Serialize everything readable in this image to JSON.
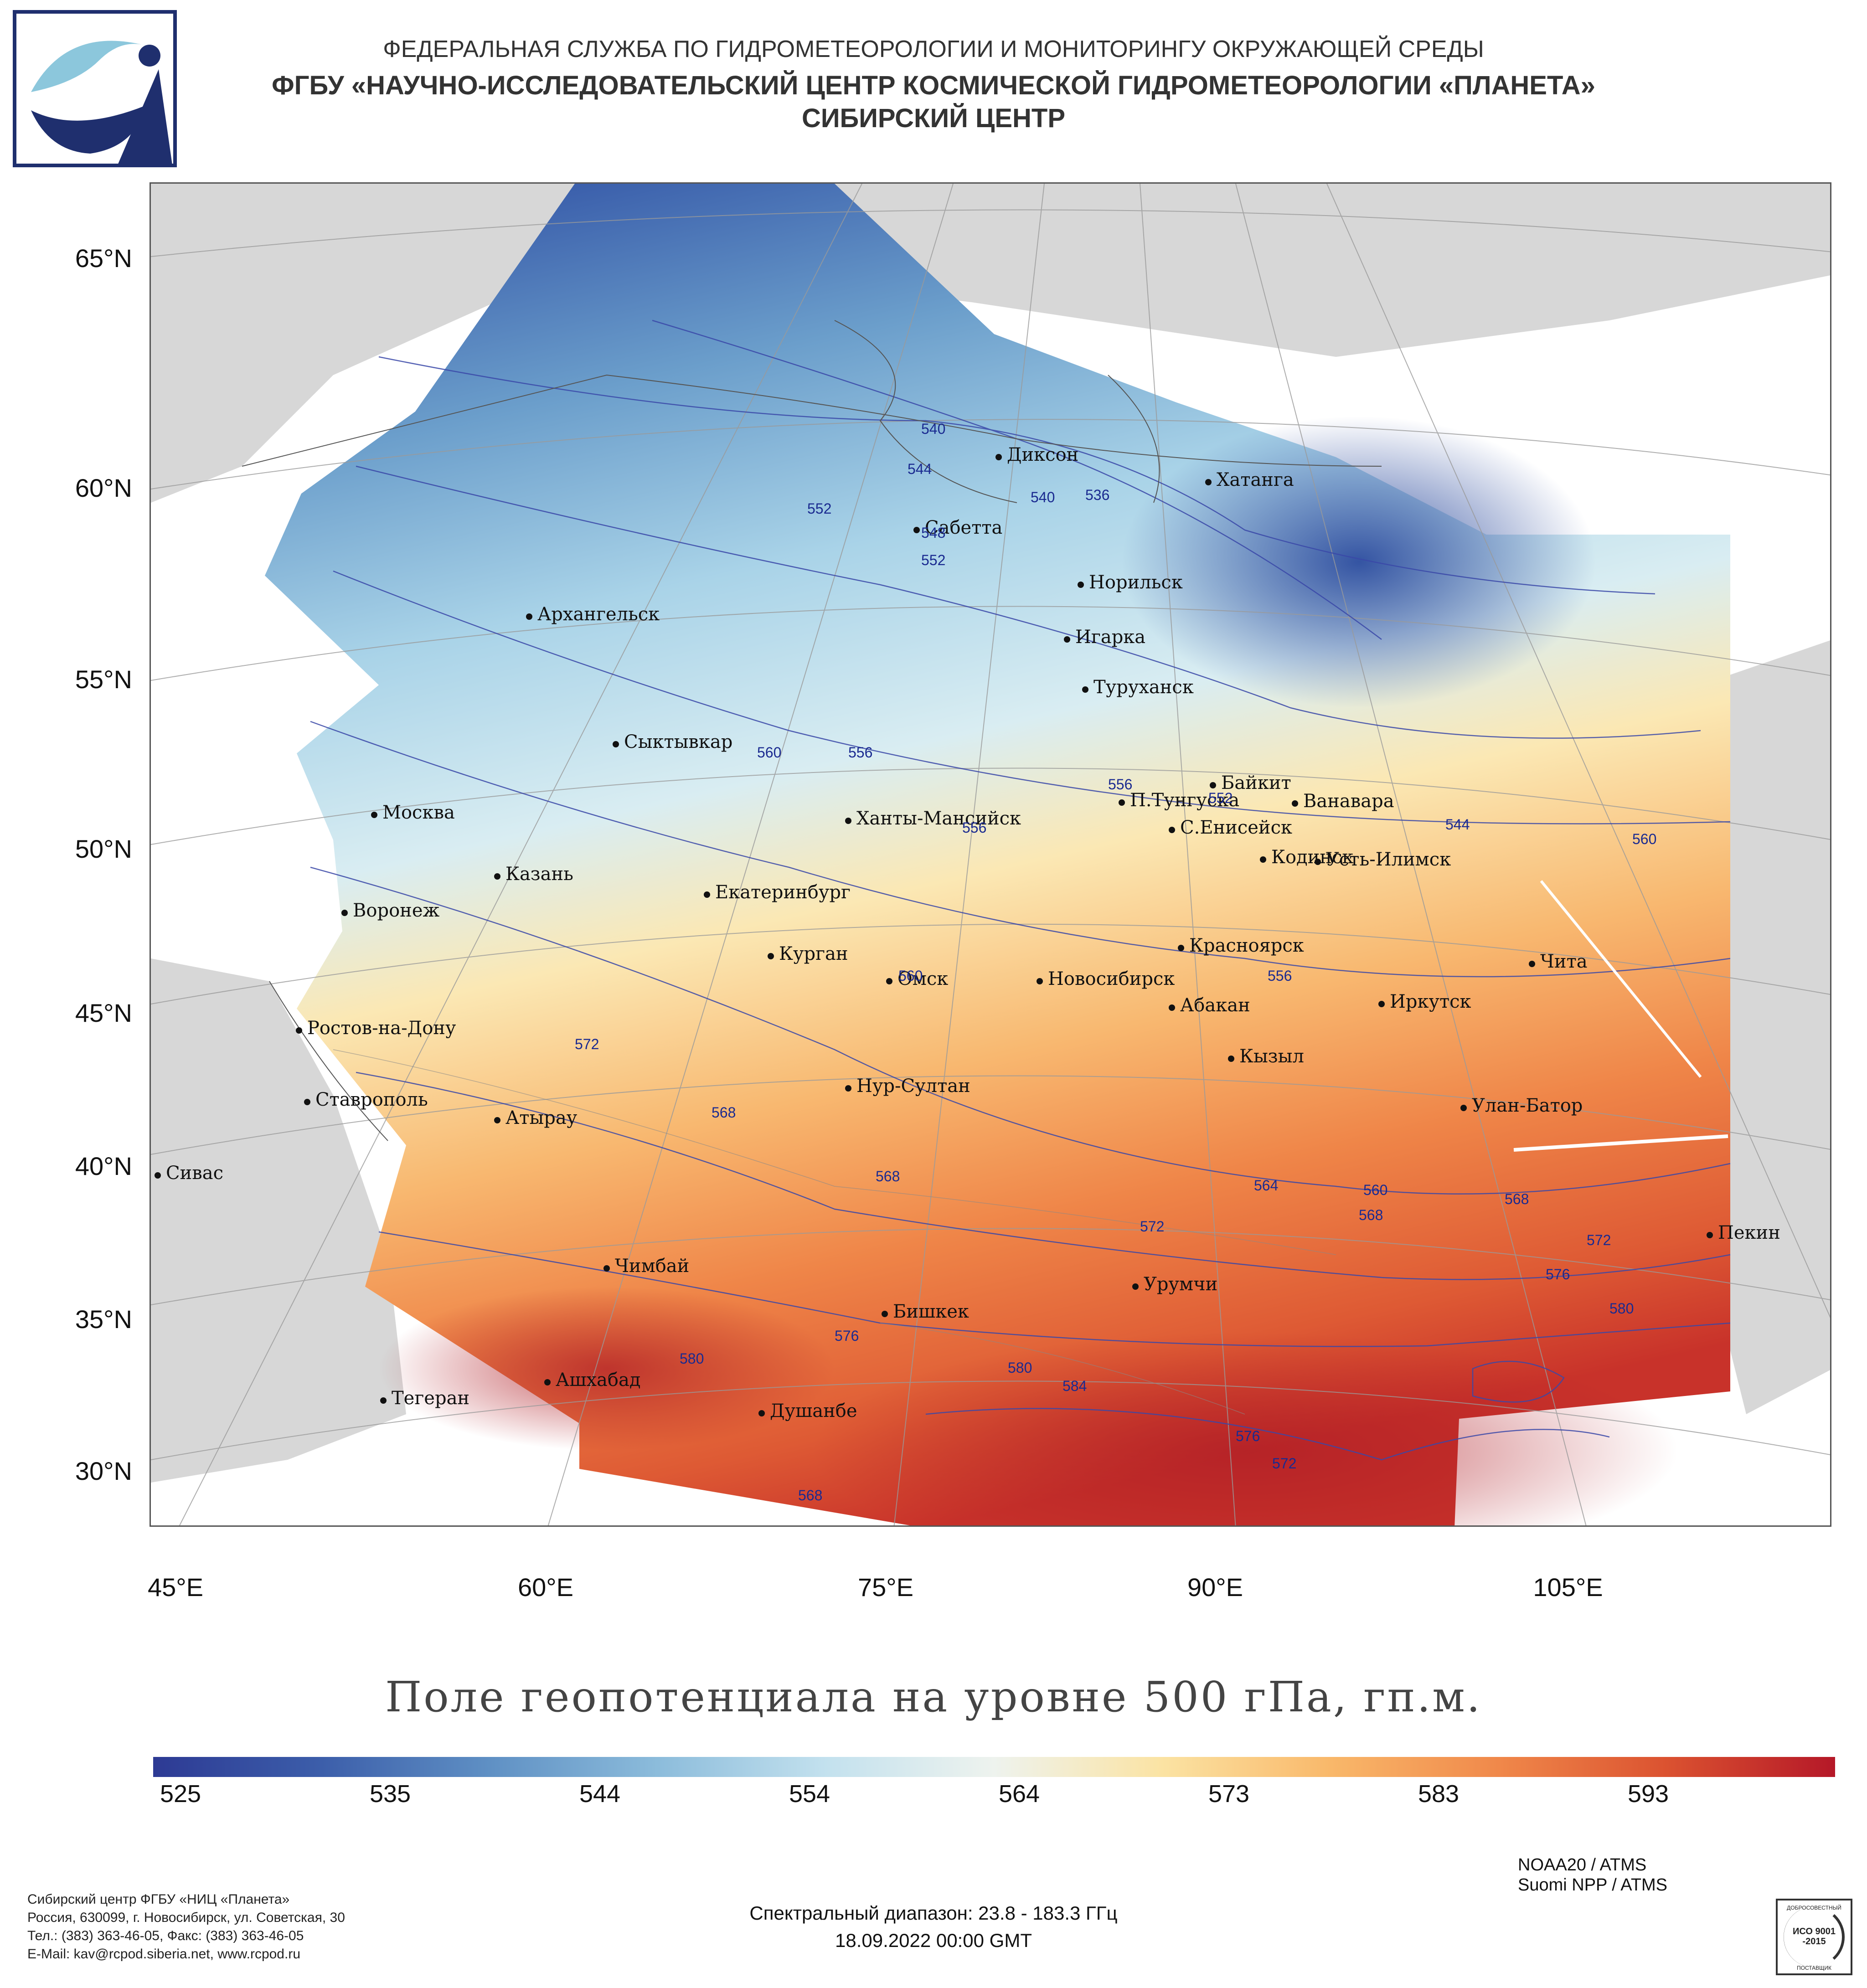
{
  "header": {
    "line1": "ФЕДЕРАЛЬНАЯ СЛУЖБА ПО ГИДРОМЕТЕОРОЛОГИИ И МОНИТОРИНГУ ОКРУЖАЮЩЕЙ СРЕДЫ",
    "line2": "ФГБУ «НАУЧНО-ИССЛЕДОВАТЕЛЬСКИЙ ЦЕНТР КОСМИЧЕСКОЙ ГИДРОМЕТЕОРОЛОГИИ «ПЛАНЕТА»",
    "line3": "СИБИРСКИЙ ЦЕНТР"
  },
  "map": {
    "lat_labels": [
      "65°N",
      "60°N",
      "55°N",
      "50°N",
      "45°N",
      "40°N",
      "35°N",
      "30°N"
    ],
    "lon_labels": [
      "45°E",
      "60°E",
      "75°E",
      "90°E",
      "105°E"
    ],
    "cities": [
      {
        "name": "Диксон"
      },
      {
        "name": "Хатанга"
      },
      {
        "name": "Сабетта"
      },
      {
        "name": "Архангельск"
      },
      {
        "name": "Норильск"
      },
      {
        "name": "Игарка"
      },
      {
        "name": "Туруханск"
      },
      {
        "name": "Сыктывкар"
      },
      {
        "name": "Байкит"
      },
      {
        "name": "П.Тунгуска"
      },
      {
        "name": "Ванавара"
      },
      {
        "name": "Москва"
      },
      {
        "name": "Ханты-Мансийск"
      },
      {
        "name": "С.Енисейск"
      },
      {
        "name": "Кодинск"
      },
      {
        "name": "Усть-Илимск"
      },
      {
        "name": "Казань"
      },
      {
        "name": "Екатеринбург"
      },
      {
        "name": "Воронеж"
      },
      {
        "name": "Красноярск"
      },
      {
        "name": "Курган"
      },
      {
        "name": "Чита"
      },
      {
        "name": "Омск"
      },
      {
        "name": "Новосибирск"
      },
      {
        "name": "Иркутск"
      },
      {
        "name": "Абакан"
      },
      {
        "name": "Ростов-на-Дону"
      },
      {
        "name": "Кызыл"
      },
      {
        "name": "Нур-Султан"
      },
      {
        "name": "Ставрополь"
      },
      {
        "name": "Улан-Батор"
      },
      {
        "name": "Атырау"
      },
      {
        "name": "Сивас"
      },
      {
        "name": "Пекин"
      },
      {
        "name": "Чимбай"
      },
      {
        "name": "Урумчи"
      },
      {
        "name": "Бишкек"
      },
      {
        "name": "Ашхабад"
      },
      {
        "name": "Тегеран"
      },
      {
        "name": "Душанбе"
      }
    ],
    "contour_labels": [
      "540",
      "544",
      "536",
      "552",
      "548",
      "552",
      "540",
      "556",
      "560",
      "556",
      "556",
      "552",
      "544",
      "560",
      "560",
      "556",
      "572",
      "568",
      "568",
      "564",
      "560",
      "568",
      "568",
      "572",
      "572",
      "576",
      "580",
      "576",
      "580",
      "584",
      "580",
      "576",
      "572",
      "568"
    ],
    "colors": {
      "land": "#d7d7d7",
      "ocean": "#ffffff",
      "contour": "#3a48a8",
      "grid": "#9a9a9a"
    }
  },
  "title": "Поле геопотенциала на уровне 500 гПа, гп.м.",
  "colorbar": {
    "ticks": [
      "525",
      "535",
      "544",
      "554",
      "564",
      "573",
      "583",
      "593"
    ],
    "colors": [
      "#2d3a94",
      "#3c5eaa",
      "#5f90c4",
      "#8cbcdb",
      "#c3e1ee",
      "#eef3ee",
      "#fbe3a3",
      "#f9b86a",
      "#f0884a",
      "#db5230",
      "#b51828"
    ]
  },
  "footer": {
    "left": [
      "Сибирский центр ФГБУ «НИЦ «Планета»",
      "Россия, 630099, г. Новосибирск, ул. Советская, 30",
      "Тел.: (383) 363-46-05, Факс: (383) 363-46-05",
      "E-Mail: kav@rcpod.siberia.net, www.rcpod.ru"
    ],
    "center": [
      "Спектральный диапазон: 23.8 - 183.3 ГГц",
      "18.09.2022 00:00 GMT"
    ],
    "right": [
      "NOAA20 / ATMS",
      "Suomi NPP / ATMS"
    ]
  },
  "cert": {
    "top": "ДОБРОСОВЕСТНЫЙ",
    "mid": "ИСО 9001 -2015",
    "bottom": "ПОСТАВЩИК"
  }
}
